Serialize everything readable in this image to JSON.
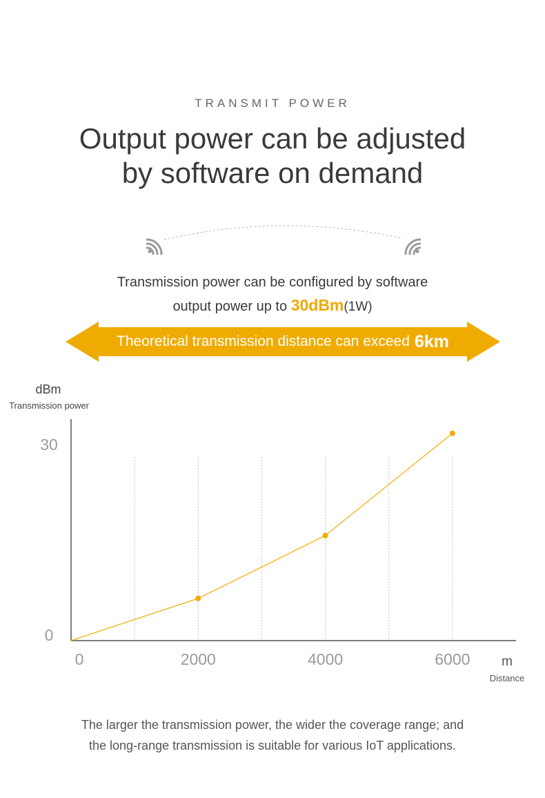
{
  "section": {
    "label": "TRANSMIT POWER"
  },
  "headline": {
    "line1": "Output power can be adjusted",
    "line2": "by software on demand"
  },
  "description": {
    "line1": "Transmission power can be configured by software",
    "line2_prefix": "output power up to",
    "highlight": "30dBm",
    "suffix": "(1W)"
  },
  "banner": {
    "text": "Theoretical transmission distance can exceed",
    "highlight": "6km",
    "color": "#f0ab00"
  },
  "icons": {
    "left": "wifi-signal-icon",
    "right": "wifi-signal-icon"
  },
  "chart_data": {
    "type": "line",
    "ylabel_unit": "dBm",
    "ylabel": "Transmission power",
    "xlabel_unit": "m",
    "xlabel": "Distance",
    "x": [
      0,
      2000,
      4000,
      6000
    ],
    "y": [
      0,
      5.9,
      14.7,
      29
    ],
    "x_ticks": [
      "0",
      "2000",
      "4000",
      "6000"
    ],
    "y_ticks": [
      "0",
      "30"
    ],
    "xlim": [
      0,
      7000
    ],
    "ylim": [
      0,
      31
    ],
    "grid_x": [
      1000,
      2000,
      3000,
      4000,
      5000,
      6000
    ],
    "line_color": "#f0ab00",
    "grid": "vertical dashed",
    "legend": "none"
  },
  "footer": {
    "line1": "The larger the transmission power, the wider the coverage range; and",
    "line2": "the long-range transmission is suitable for various IoT applications."
  }
}
